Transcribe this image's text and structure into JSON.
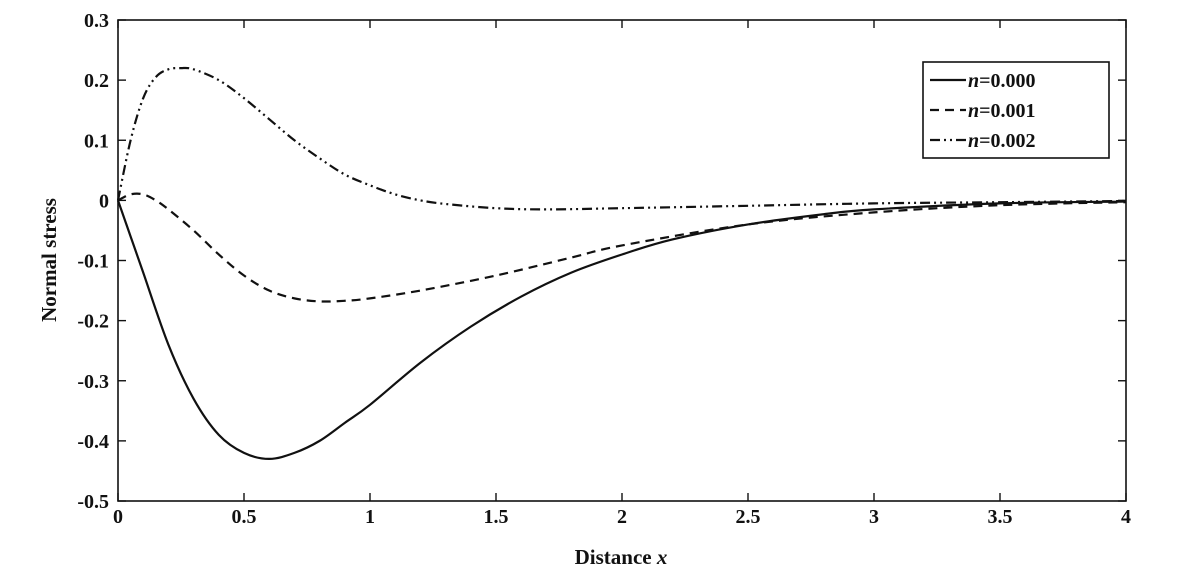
{
  "chart_data": {
    "type": "line",
    "title": "",
    "xlabel": "Distance",
    "xlabel_var": "x",
    "ylabel": "Normal stress",
    "xlim": [
      0,
      4
    ],
    "ylim": [
      -0.5,
      0.3
    ],
    "x_ticks": [
      "0",
      "0.5",
      "1",
      "1.5",
      "2",
      "2.5",
      "3",
      "3.5",
      "4"
    ],
    "y_ticks": [
      "0.3",
      "0.2",
      "0.1",
      "0",
      "-0.1",
      "-0.2",
      "-0.3",
      "-0.4",
      "-0.5"
    ],
    "grid": false,
    "legend_position": "top-right",
    "series": [
      {
        "name": "n=0.000",
        "name_var": "n",
        "name_value": "=0.000",
        "style": "solid",
        "x": [
          0,
          0.05,
          0.1,
          0.2,
          0.3,
          0.4,
          0.5,
          0.6,
          0.7,
          0.8,
          0.9,
          1.0,
          1.2,
          1.4,
          1.6,
          1.8,
          2.0,
          2.2,
          2.5,
          2.8,
          3.0,
          3.5,
          4.0
        ],
        "y": [
          0,
          -0.06,
          -0.12,
          -0.24,
          -0.33,
          -0.39,
          -0.42,
          -0.43,
          -0.42,
          -0.4,
          -0.37,
          -0.34,
          -0.27,
          -0.21,
          -0.16,
          -0.12,
          -0.09,
          -0.065,
          -0.04,
          -0.023,
          -0.015,
          -0.005,
          -0.002
        ]
      },
      {
        "name": "n=0.001",
        "name_var": "n",
        "name_value": "=0.001",
        "style": "dashed",
        "x": [
          0,
          0.05,
          0.1,
          0.15,
          0.2,
          0.3,
          0.4,
          0.5,
          0.6,
          0.7,
          0.8,
          0.9,
          1.0,
          1.2,
          1.5,
          1.8,
          2.0,
          2.5,
          3.0,
          3.5,
          4.0
        ],
        "y": [
          0,
          0.01,
          0.01,
          0.0,
          -0.015,
          -0.05,
          -0.09,
          -0.125,
          -0.15,
          -0.163,
          -0.168,
          -0.167,
          -0.163,
          -0.15,
          -0.125,
          -0.095,
          -0.075,
          -0.04,
          -0.02,
          -0.008,
          -0.003
        ]
      },
      {
        "name": "n=0.002",
        "name_var": "n",
        "name_value": "=0.002",
        "style": "dashdot",
        "x": [
          0,
          0.05,
          0.1,
          0.15,
          0.2,
          0.25,
          0.3,
          0.4,
          0.5,
          0.6,
          0.7,
          0.8,
          0.9,
          1.0,
          1.1,
          1.2,
          1.3,
          1.5,
          1.7,
          2.0,
          2.5,
          3.0,
          3.5,
          4.0
        ],
        "y": [
          0,
          0.1,
          0.17,
          0.205,
          0.218,
          0.22,
          0.218,
          0.2,
          0.17,
          0.135,
          0.1,
          0.07,
          0.043,
          0.025,
          0.01,
          0.0,
          -0.006,
          -0.013,
          -0.015,
          -0.013,
          -0.009,
          -0.005,
          -0.003,
          -0.001
        ]
      }
    ]
  }
}
